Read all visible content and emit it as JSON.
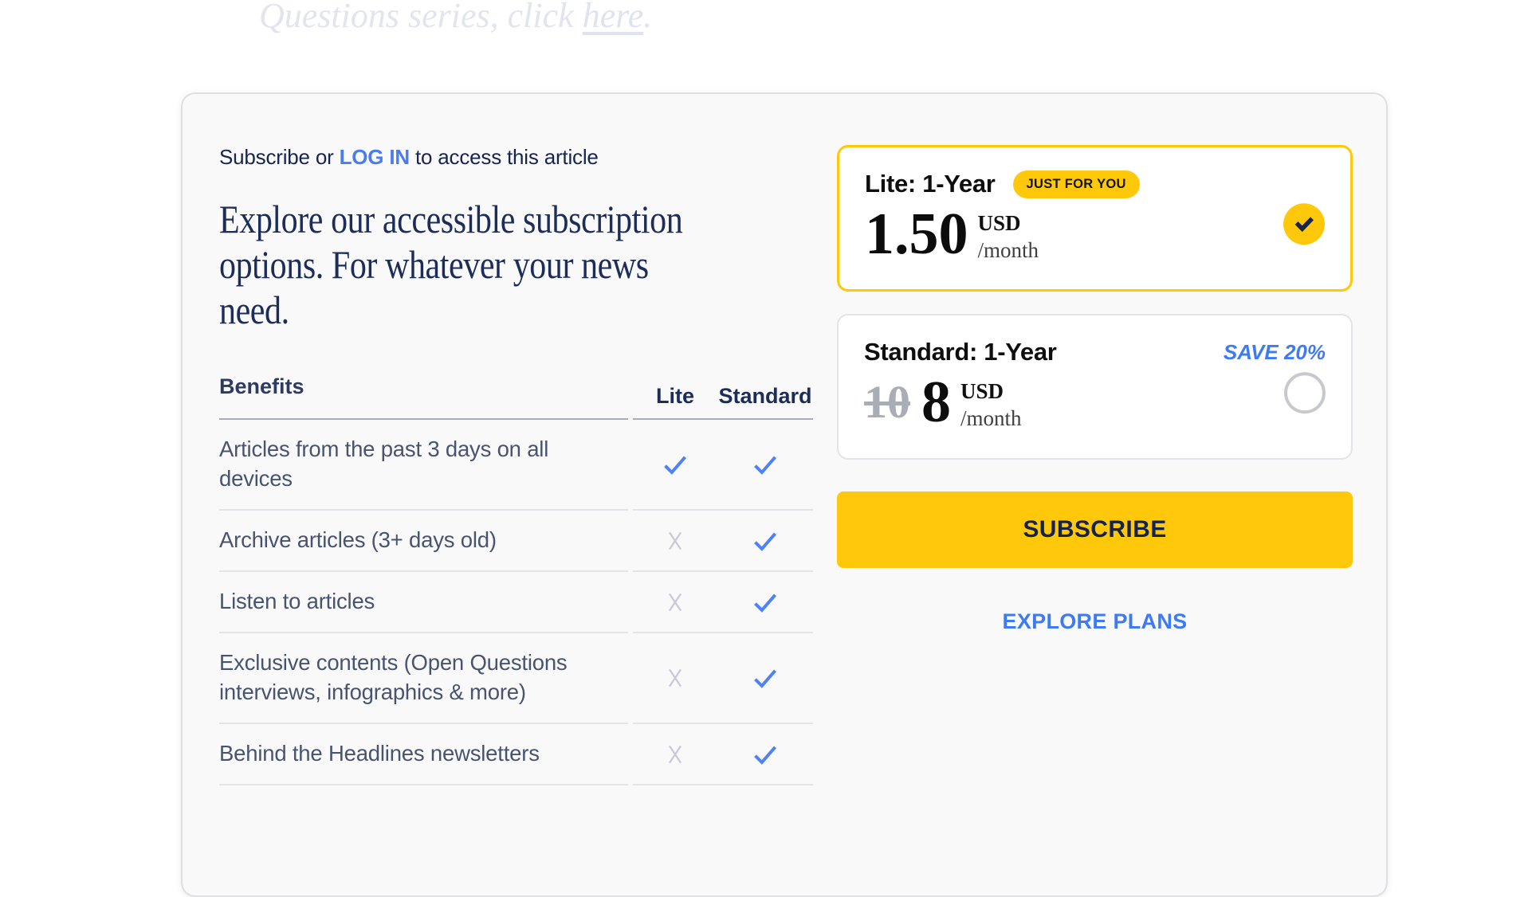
{
  "teaser": {
    "text": "Questions series, click ",
    "link_text": "here",
    "after_link": "."
  },
  "access": {
    "prefix": "Subscribe or ",
    "login_label": "LOG IN",
    "suffix": " to access this article"
  },
  "heading": {
    "line1": "Explore our accessible subscription",
    "line2": "options. For whatever your news",
    "line3": "need."
  },
  "benefits": {
    "header": {
      "benefits": "Benefits",
      "lite": "Lite",
      "standard": "Standard"
    },
    "rows": [
      {
        "label": "Articles from the past 3 days on all devices",
        "lite": true,
        "standard": true
      },
      {
        "label": "Archive articles (3+ days old)",
        "lite": false,
        "standard": true
      },
      {
        "label": "Listen to articles",
        "lite": false,
        "standard": true
      },
      {
        "label": "Exclusive contents (Open Questions interviews, infographics & more)",
        "lite": false,
        "standard": true
      },
      {
        "label": "Behind the Headlines newsletters",
        "lite": false,
        "standard": true
      }
    ]
  },
  "plans": [
    {
      "name": "Lite: 1-Year",
      "badge": "JUST FOR YOU",
      "price": "1.50",
      "currency": "USD",
      "period": "/month",
      "selected": true
    },
    {
      "name": "Standard: 1-Year",
      "save_label": "SAVE 20%",
      "old_price": "10",
      "price": "8",
      "currency": "USD",
      "period": "/month",
      "selected": false
    }
  ],
  "actions": {
    "subscribe": "SUBSCRIBE",
    "explore": "EXPLORE PLANS"
  },
  "colors": {
    "accent_yellow": "#ffc80a",
    "accent_blue": "#4a7bf0",
    "check_blue": "#4e82f7",
    "x_gray": "#c7cbd4",
    "navy": "#16254e"
  }
}
